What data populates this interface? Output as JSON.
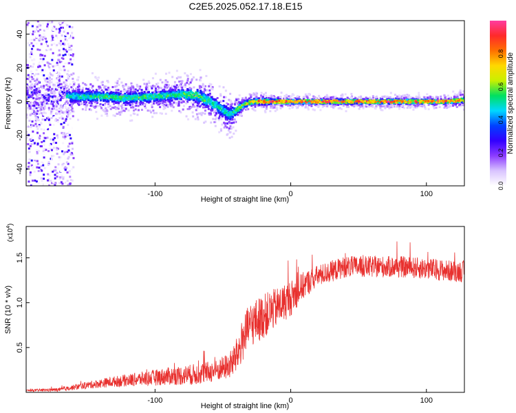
{
  "title": "C2E5.2025.052.17.18.E15",
  "colors": {
    "snr_line": "#e8302e",
    "axis": "#000000",
    "background": "#ffffff"
  },
  "chart_data": [
    {
      "type": "heatmap",
      "xlabel": "Height of straight line (km)",
      "ylabel": "Frequency (Hz)",
      "xlim": [
        -195,
        128
      ],
      "ylim": [
        -50,
        48
      ],
      "x_ticks": [
        -100,
        0,
        100
      ],
      "y_ticks": [
        -40,
        -20,
        0,
        20,
        40
      ],
      "grid": false,
      "colorbar": {
        "label": "Normalized spectral amplitude",
        "range": [
          0,
          1
        ],
        "ticks": [
          "0.0",
          "0.2",
          "0.4",
          "0.6",
          "0.8"
        ],
        "colormap": [
          "#ffffff",
          "#d9c4ff",
          "#8c3cff",
          "#3200ff",
          "#0040ff",
          "#00d8ff",
          "#00e060",
          "#c8f000",
          "#ffd800",
          "#ff7000",
          "#ff2a2a",
          "#ff3ca0"
        ]
      },
      "ridge": {
        "x": [
          -195,
          -160,
          -140,
          -120,
          -100,
          -85,
          -70,
          -60,
          -50,
          -45,
          -40,
          -35,
          -28,
          -20,
          0,
          20,
          50,
          80,
          100,
          115,
          128
        ],
        "freq": [
          3,
          3,
          3,
          2,
          3,
          4,
          4,
          0,
          -5,
          -8,
          -5,
          -2,
          0,
          0,
          0,
          0,
          0,
          0,
          0,
          0,
          1
        ],
        "spread": [
          5,
          4,
          4,
          4,
          4,
          4,
          5,
          5,
          5,
          5,
          4,
          2,
          2,
          2,
          1.5,
          1.5,
          1.5,
          1.5,
          1.5,
          1.5,
          2
        ],
        "amplitude": [
          0.35,
          0.45,
          0.5,
          0.5,
          0.5,
          0.5,
          0.55,
          0.5,
          0.45,
          0.45,
          0.5,
          0.65,
          0.8,
          0.85,
          0.9,
          0.9,
          0.92,
          0.92,
          0.9,
          0.88,
          0.7
        ]
      },
      "noise_region": {
        "x_range": [
          -195,
          -160
        ],
        "freq_range": [
          -50,
          48
        ],
        "amplitude_max": 0.3
      }
    },
    {
      "type": "line",
      "xlabel": "Height of straight line (km)",
      "ylabel": "SNR (10 * v/v)",
      "y_scale_label": "(x10",
      "y_scale_exp": "4",
      "y_scale_close": ")",
      "xlim": [
        -195,
        128
      ],
      "ylim": [
        0,
        1.85
      ],
      "x_ticks": [
        -100,
        0,
        100
      ],
      "y_ticks": [
        0.5,
        1.0,
        1.5
      ],
      "y_tick_labels": [
        "0.5",
        "1.0",
        "1.5"
      ],
      "grid": false,
      "series": [
        {
          "trend_x": [
            -195,
            -170,
            -150,
            -130,
            -110,
            -90,
            -70,
            -55,
            -45,
            -40,
            -35,
            -30,
            -20,
            -10,
            0,
            10,
            20,
            30,
            40,
            60,
            80,
            100,
            120,
            128
          ],
          "trend_y": [
            0.02,
            0.03,
            0.08,
            0.12,
            0.15,
            0.18,
            0.2,
            0.24,
            0.3,
            0.4,
            0.6,
            0.75,
            0.85,
            0.95,
            1.05,
            1.2,
            1.3,
            1.35,
            1.4,
            1.4,
            1.4,
            1.38,
            1.35,
            1.35
          ],
          "noise_y": [
            0.01,
            0.02,
            0.04,
            0.06,
            0.08,
            0.1,
            0.12,
            0.12,
            0.15,
            0.2,
            0.25,
            0.25,
            0.25,
            0.22,
            0.2,
            0.15,
            0.12,
            0.12,
            0.12,
            0.12,
            0.12,
            0.12,
            0.12,
            0.12
          ]
        }
      ]
    }
  ]
}
